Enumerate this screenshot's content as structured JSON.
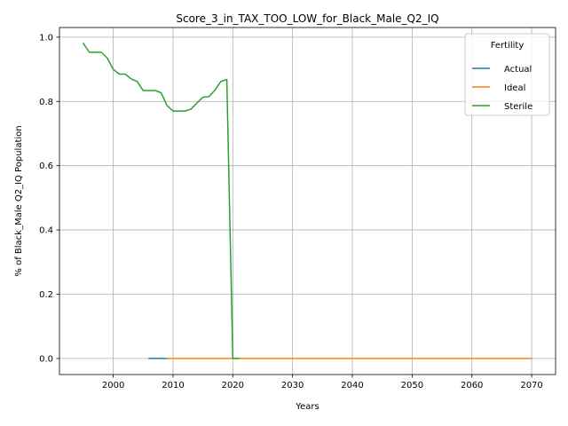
{
  "chart_data": {
    "type": "line",
    "title": "Score_3_in_TAX_TOO_LOW_for_Black_Male_Q2_IQ",
    "xlabel": "Years",
    "ylabel": "% of Black_Male Q2_IQ Population",
    "xlim": [
      1991,
      2074
    ],
    "ylim": [
      -0.05,
      1.03
    ],
    "x_ticks": [
      2000,
      2010,
      2020,
      2030,
      2040,
      2050,
      2060,
      2070
    ],
    "y_ticks": [
      0.0,
      0.2,
      0.4,
      0.6,
      0.8,
      1.0
    ],
    "y_tick_labels": [
      "0.0",
      "0.2",
      "0.4",
      "0.6",
      "0.8",
      "1.0"
    ],
    "grid": true,
    "legend": {
      "title": "Fertility",
      "placement": "top-right"
    },
    "series": [
      {
        "name": "Actual",
        "color": "#1f77b4",
        "x": [
          2006,
          2007,
          2008,
          2009
        ],
        "y": [
          0,
          0,
          0,
          0
        ]
      },
      {
        "name": "Ideal",
        "color": "#ff7f0e",
        "x": [
          2009,
          2020,
          2030,
          2040,
          2050,
          2060,
          2070
        ],
        "y": [
          0,
          0,
          0,
          0,
          0,
          0,
          0
        ]
      },
      {
        "name": "Sterile",
        "color": "#2ca02c",
        "x": [
          1995,
          1996,
          1997,
          1998,
          1999,
          2000,
          2001,
          2002,
          2003,
          2004,
          2005,
          2006,
          2007,
          2008,
          2009,
          2010,
          2011,
          2012,
          2013,
          2014,
          2015,
          2016,
          2017,
          2018,
          2019,
          2020,
          2021
        ],
        "y": [
          0.98,
          0.953,
          0.953,
          0.953,
          0.935,
          0.9,
          0.885,
          0.885,
          0.87,
          0.862,
          0.834,
          0.834,
          0.834,
          0.827,
          0.787,
          0.77,
          0.77,
          0.77,
          0.776,
          0.795,
          0.813,
          0.815,
          0.835,
          0.862,
          0.868,
          0.0,
          0.0
        ]
      }
    ]
  }
}
